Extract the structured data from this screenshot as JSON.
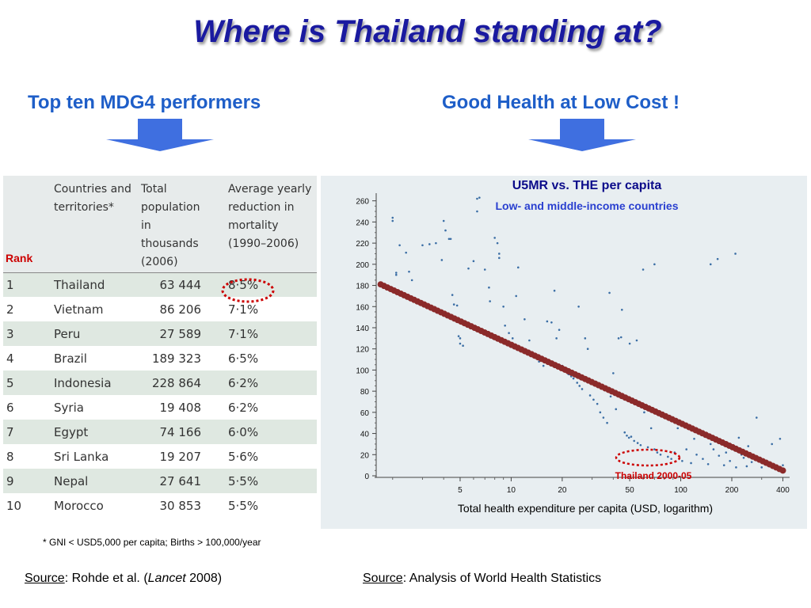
{
  "header": {
    "title": "Where is Thailand standing at?",
    "left_heading": "Top ten MDG4 performers",
    "right_heading": "Good Health at Low Cost !"
  },
  "table": {
    "rank_label": "Rank",
    "columns": [
      "Countries and territories*",
      "Total population in thousands (2006)",
      "Average yearly reduction in mortality (1990–2006)"
    ],
    "rows": [
      {
        "rank": "1",
        "country": "Thailand",
        "population": "63 444",
        "reduction": "8·5%"
      },
      {
        "rank": "2",
        "country": "Vietnam",
        "population": "86 206",
        "reduction": "7·1%"
      },
      {
        "rank": "3",
        "country": "Peru",
        "population": "27 589",
        "reduction": "7·1%"
      },
      {
        "rank": "4",
        "country": "Brazil",
        "population": "189 323",
        "reduction": "6·5%"
      },
      {
        "rank": "5",
        "country": "Indonesia",
        "population": "228 864",
        "reduction": "6·2%"
      },
      {
        "rank": "6",
        "country": "Syria",
        "population": "19 408",
        "reduction": "6·2%"
      },
      {
        "rank": "7",
        "country": "Egypt",
        "population": "74 166",
        "reduction": "6·0%"
      },
      {
        "rank": "8",
        "country": "Sri Lanka",
        "population": "19 207",
        "reduction": "5·6%"
      },
      {
        "rank": "9",
        "country": "Nepal",
        "population": "27 641",
        "reduction": "5·5%"
      },
      {
        "rank": "10",
        "country": "Morocco",
        "population": "30 853",
        "reduction": "5·5%"
      }
    ],
    "footnote": "* GNI < USD5,000 per capita; Births > 100,000/year"
  },
  "sources": {
    "prefix": "Source",
    "left_text": ": Rohde et al. (",
    "left_journal": "Lancet",
    "left_year": " 2008)",
    "right_text": ": Analysis of World Health Statistics"
  },
  "colors": {
    "title": "#1a1aa0",
    "heading": "#1e5ec8",
    "arrow": "#3f6fe0",
    "fit_line": "#8b2a2a",
    "scatter": "#3b6ea5",
    "highlight": "#cc0000",
    "chart_title": "#0b0b8a",
    "chart_subtitle": "#2a40d0"
  },
  "chart_data": {
    "type": "scatter",
    "title": "U5MR vs. THE per capita",
    "subtitle": "Low- and middle-income countries",
    "xlabel": "Total health expenditure per capita (USD, logarithm)",
    "ylabel": "",
    "x_scale": "log",
    "xlim": [
      1.6,
      420
    ],
    "ylim": [
      0,
      265
    ],
    "x_ticks": [
      5,
      10,
      20,
      50,
      100,
      200,
      400
    ],
    "y_ticks": [
      0,
      20,
      40,
      60,
      80,
      100,
      120,
      140,
      160,
      180,
      200,
      220,
      240,
      260
    ],
    "grid": false,
    "annotation": "Thailand 2000-05",
    "fit_line": {
      "points": [
        [
          1.7,
          181
        ],
        [
          400,
          5
        ]
      ]
    },
    "series": [
      {
        "values": [
          [
            2.0,
            244
          ],
          [
            2.0,
            241
          ],
          [
            2.1,
            192
          ],
          [
            2.1,
            190
          ],
          [
            2.2,
            218
          ],
          [
            2.4,
            211
          ],
          [
            2.5,
            193
          ],
          [
            2.6,
            185
          ],
          [
            3.0,
            218
          ],
          [
            3.3,
            219
          ],
          [
            3.6,
            220
          ],
          [
            3.9,
            204
          ],
          [
            4.0,
            241
          ],
          [
            4.1,
            232
          ],
          [
            4.3,
            224
          ],
          [
            4.4,
            224
          ],
          [
            4.5,
            171
          ],
          [
            4.6,
            162
          ],
          [
            4.8,
            161
          ],
          [
            4.9,
            132
          ],
          [
            5.0,
            130
          ],
          [
            5.0,
            125
          ],
          [
            5.2,
            123
          ],
          [
            5.6,
            196
          ],
          [
            6.0,
            203
          ],
          [
            6.3,
            250
          ],
          [
            6.3,
            262
          ],
          [
            6.5,
            263
          ],
          [
            7.0,
            195
          ],
          [
            7.4,
            178
          ],
          [
            7.5,
            165
          ],
          [
            8.0,
            225
          ],
          [
            8.3,
            220
          ],
          [
            8.5,
            210
          ],
          [
            8.5,
            206
          ],
          [
            9.0,
            160
          ],
          [
            9.2,
            142
          ],
          [
            9.7,
            135
          ],
          [
            10.2,
            130
          ],
          [
            10.7,
            170
          ],
          [
            11.0,
            197
          ],
          [
            11.6,
            118
          ],
          [
            12.0,
            148
          ],
          [
            12.8,
            128
          ],
          [
            13.7,
            113
          ],
          [
            14.6,
            108
          ],
          [
            15.5,
            104
          ],
          [
            16.3,
            146
          ],
          [
            17.3,
            145
          ],
          [
            18.0,
            175
          ],
          [
            18.5,
            130
          ],
          [
            19.2,
            138
          ],
          [
            20.0,
            104
          ],
          [
            21.1,
            100
          ],
          [
            21.8,
            96
          ],
          [
            22.6,
            94
          ],
          [
            23.3,
            92
          ],
          [
            24.5,
            88
          ],
          [
            25.3,
            85
          ],
          [
            26.2,
            82
          ],
          [
            27.3,
            130
          ],
          [
            28.3,
            120
          ],
          [
            29.2,
            76
          ],
          [
            30.6,
            72
          ],
          [
            32.2,
            68
          ],
          [
            33.5,
            60
          ],
          [
            35.0,
            55
          ],
          [
            36.8,
            50
          ],
          [
            38.6,
            75
          ],
          [
            40.0,
            97
          ],
          [
            41.5,
            63
          ],
          [
            43.0,
            130
          ],
          [
            44.5,
            131
          ],
          [
            46.7,
            41
          ],
          [
            48.1,
            38
          ],
          [
            49.5,
            36
          ],
          [
            51.0,
            37
          ],
          [
            53.1,
            33
          ],
          [
            55.7,
            31
          ],
          [
            58.0,
            29
          ],
          [
            60.9,
            60
          ],
          [
            64.0,
            27
          ],
          [
            66.9,
            45
          ],
          [
            70.0,
            25
          ],
          [
            72.7,
            22
          ],
          [
            76.0,
            20
          ],
          [
            79.4,
            57
          ],
          [
            84.0,
            18
          ],
          [
            88.0,
            16
          ],
          [
            92.0,
            22
          ],
          [
            96.0,
            45
          ],
          [
            102.0,
            14
          ],
          [
            108.0,
            25
          ],
          [
            115.0,
            12
          ],
          [
            124.0,
            20
          ],
          [
            135.0,
            16
          ],
          [
            145.0,
            11
          ],
          [
            156.0,
            25
          ],
          [
            168.0,
            19
          ],
          [
            180.0,
            10
          ],
          [
            195.0,
            14
          ],
          [
            212.0,
            8
          ],
          [
            228.0,
            20
          ],
          [
            245.0,
            9
          ],
          [
            262.0,
            13
          ],
          [
            280.0,
            55
          ],
          [
            300.0,
            8
          ],
          [
            320.0,
            12
          ],
          [
            345.0,
            30
          ],
          [
            365.0,
            7
          ],
          [
            385.0,
            35
          ],
          [
            400.0,
            10
          ],
          [
            250.0,
            28
          ],
          [
            235.0,
            17
          ],
          [
            220.0,
            36
          ],
          [
            185.0,
            22
          ],
          [
            150.0,
            30
          ],
          [
            120.0,
            35
          ],
          [
            150.0,
            200
          ],
          [
            165.0,
            205
          ],
          [
            210.0,
            210
          ],
          [
            60.0,
            195
          ],
          [
            70.0,
            200
          ],
          [
            45.0,
            157
          ],
          [
            38.0,
            173
          ],
          [
            50.0,
            125
          ],
          [
            55.0,
            128
          ],
          [
            25.0,
            160
          ]
        ]
      }
    ]
  }
}
